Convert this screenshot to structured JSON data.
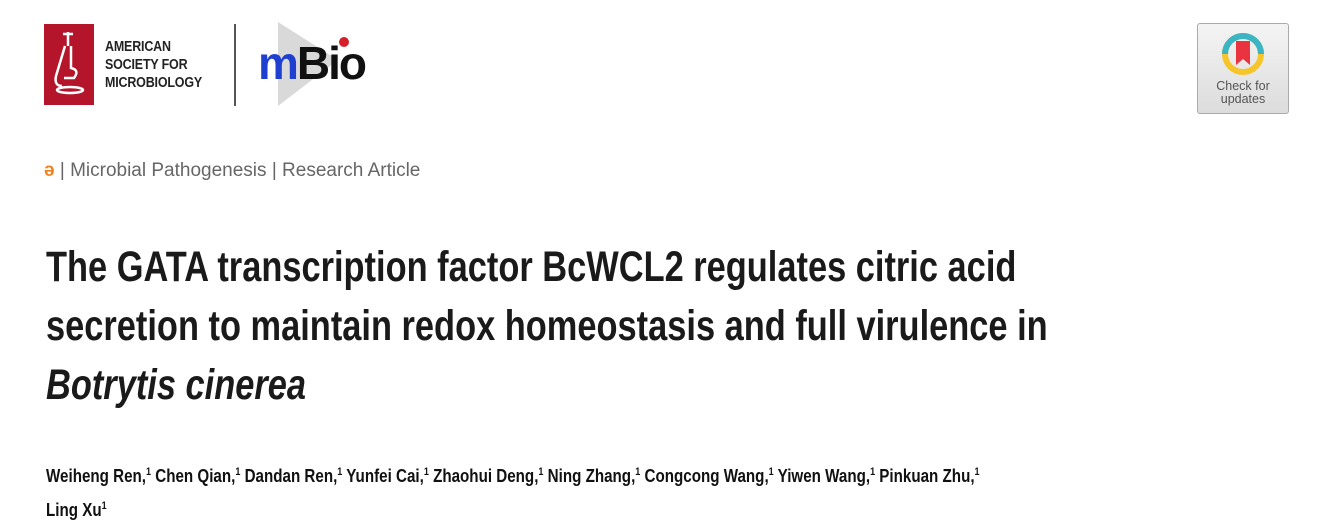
{
  "header": {
    "publisher_logo": {
      "text": [
        "AMERICAN",
        "SOCIETY FOR",
        "MICROBIOLOGY"
      ],
      "color": "#b5152b"
    },
    "journal_logo": {
      "text_m": "m",
      "text_bio": "Bio",
      "colors": {
        "m": "#1f3fd1",
        "bio": "#111111",
        "dot": "#d51f2d"
      }
    },
    "check_updates": {
      "line1": "Check for",
      "line2": "updates"
    }
  },
  "meta": {
    "open_access_icon": "open-access-icon",
    "section": "Microbial Pathogenesis",
    "type": "Research Article",
    "separator": "|"
  },
  "title": {
    "line1": "The GATA transcription factor BcWCL2 regulates citric acid",
    "line2": "secretion to maintain redox homeostasis and full virulence in",
    "line3": "Botrytis cinerea"
  },
  "authors": {
    "line1": [
      {
        "name": "Weiheng Ren,",
        "aff": "1"
      },
      {
        "name": "Chen Qian,",
        "aff": "1"
      },
      {
        "name": "Dandan Ren,",
        "aff": "1"
      },
      {
        "name": "Yunfei Cai,",
        "aff": "1"
      },
      {
        "name": "Zhaohui Deng,",
        "aff": "1"
      },
      {
        "name": "Ning Zhang,",
        "aff": "1"
      },
      {
        "name": "Congcong Wang,",
        "aff": "1"
      },
      {
        "name": "Yiwen Wang,",
        "aff": "1"
      },
      {
        "name": "Pinkuan Zhu,",
        "aff": "1"
      }
    ],
    "line2": [
      {
        "name": "Ling Xu",
        "aff": "1"
      }
    ]
  }
}
